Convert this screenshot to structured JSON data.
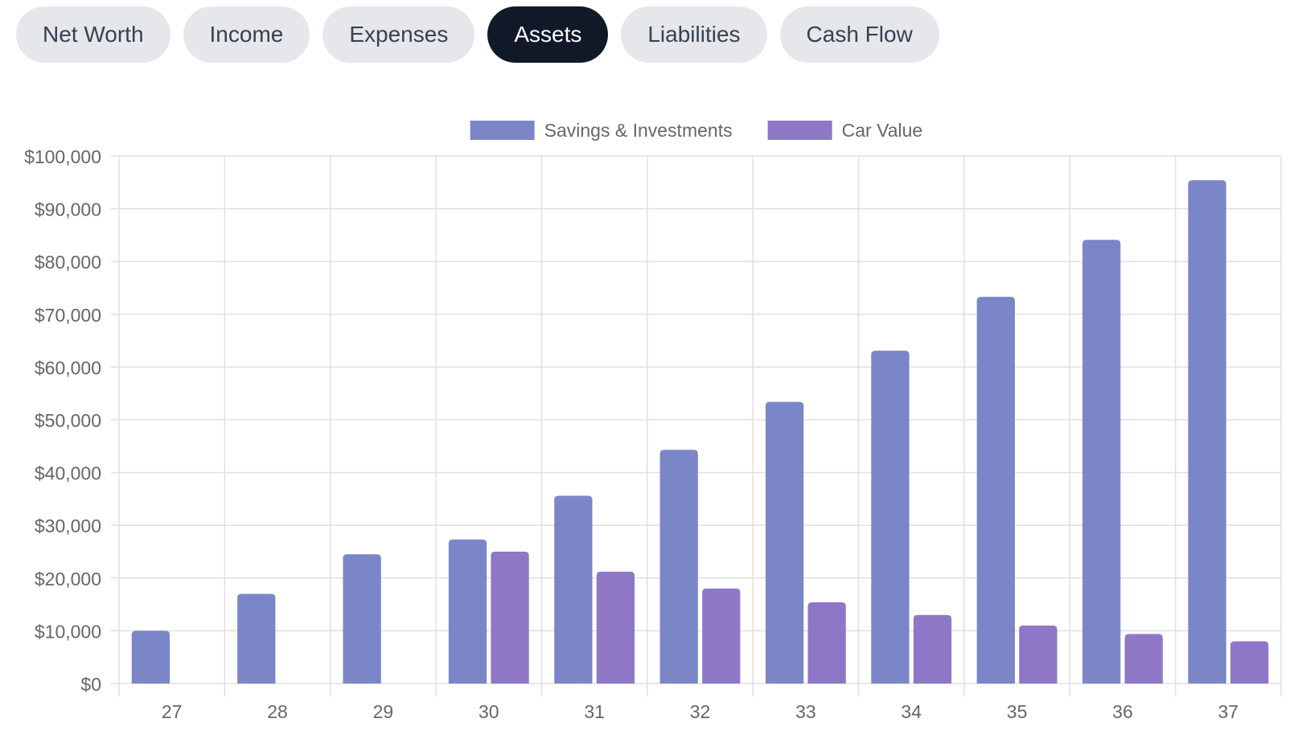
{
  "tabs": [
    {
      "label": "Net Worth",
      "active": false
    },
    {
      "label": "Income",
      "active": false
    },
    {
      "label": "Expenses",
      "active": false
    },
    {
      "label": "Assets",
      "active": true
    },
    {
      "label": "Liabilities",
      "active": false
    },
    {
      "label": "Cash Flow",
      "active": false
    }
  ],
  "colors": {
    "tab_bg": "#e5e7eb",
    "tab_active_bg": "#111827",
    "grid": "#e0e0e0",
    "tick_text": "#666666"
  },
  "chart_data": {
    "type": "bar",
    "title": "",
    "xlabel": "",
    "ylabel": "",
    "categories": [
      "27",
      "28",
      "29",
      "30",
      "31",
      "32",
      "33",
      "34",
      "35",
      "36",
      "37"
    ],
    "series": [
      {
        "name": "Savings & Investments",
        "color": "#7b86c9",
        "values": [
          10000,
          17000,
          24500,
          27300,
          35600,
          44300,
          53400,
          63100,
          73300,
          84100,
          95400
        ]
      },
      {
        "name": "Car Value",
        "color": "#8f77c7",
        "values": [
          0,
          0,
          0,
          25000,
          21200,
          18000,
          15400,
          13000,
          11000,
          9400,
          8000
        ]
      }
    ],
    "ylim": [
      0,
      100000
    ],
    "yticks": [
      "$0",
      "$10,000",
      "$20,000",
      "$30,000",
      "$40,000",
      "$50,000",
      "$60,000",
      "$70,000",
      "$80,000",
      "$90,000",
      "$100,000"
    ],
    "grid": true,
    "legend_position": "top-center"
  }
}
